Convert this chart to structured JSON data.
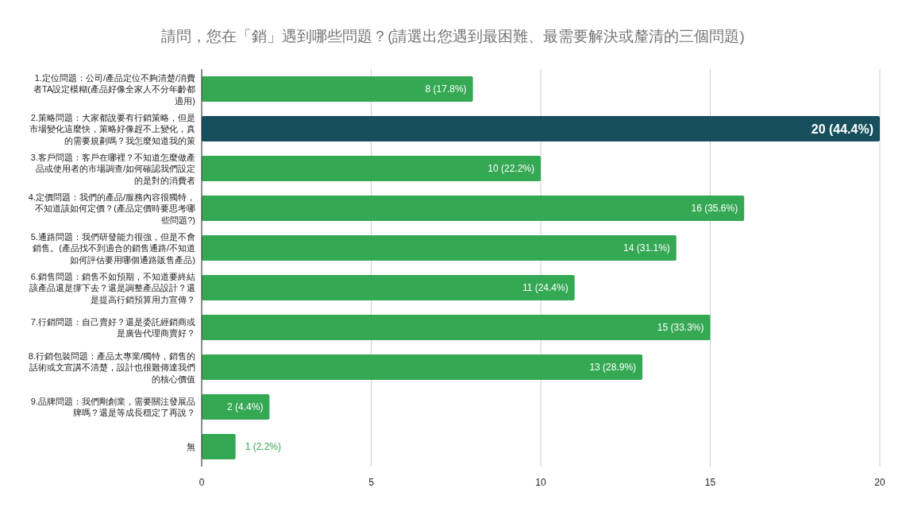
{
  "chart_data": {
    "type": "bar",
    "orientation": "horizontal",
    "title": "請問，您在「銷」遇到哪些問題？(請選出您遇到最困難、最需要解決或釐清的三個問題)",
    "categories": [
      "1.定位問題：公司/產品定位不夠清楚/消費者TA設定模糊(產品好像全家人不分年齡都適用)",
      "2.策略問題：大家都說要有行銷策略，但是市場變化這麼快，策略好像趕不上變化，真的需要規劃嗎？我怎麼知道我的策",
      "3.客戶問題：客戶在哪裡？不知道怎麼做產品或使用者的市場調查/如何確認我們設定的是對的消費者",
      "4.定價問題：我們的產品/服務內容很獨特，不知道該如何定價？(產品定價時要思考哪些問題?)",
      "5.通路問題：我們研發能力很強，但是不會銷售。(產品找不到適合的銷售通路/不知道如何評估要用哪個通路販售產品)",
      "6.銷售問題：銷售不如預期，不知道要終結該產品還是撐下去？還是調整產品設計？還是提高行銷預算用力宣傳？",
      "7.行銷問題：自己賣好？還是委託經銷商或是廣告代理商賣好？",
      "8.行銷包裝問題：產品太專業/獨特，銷售的話術或文宣講不清楚，設計也很難傳達我們的核心價值",
      "9.品牌問題：我們剛創業，需要關注發展品牌嗎？還是等成長穩定了再說？",
      "無"
    ],
    "values": [
      8,
      20,
      10,
      16,
      14,
      11,
      15,
      13,
      2,
      1
    ],
    "colors": [
      "#34a853",
      "#174f5c",
      "#34a853",
      "#34a853",
      "#34a853",
      "#34a853",
      "#34a853",
      "#34a853",
      "#34a853",
      "#34a853"
    ],
    "value_labels": [
      "8 (17.8%)",
      "20 (44.4%)",
      "10 (22.2%)",
      "16 (35.6%)",
      "14 (31.1%)",
      "11 (24.4%)",
      "15 (33.3%)",
      "13 (28.9%)",
      "2 (4.4%)",
      "1 (2.2%)"
    ],
    "xlim": [
      0,
      20
    ],
    "xticks": [
      0,
      5,
      10,
      15,
      20
    ],
    "grid": "x"
  }
}
